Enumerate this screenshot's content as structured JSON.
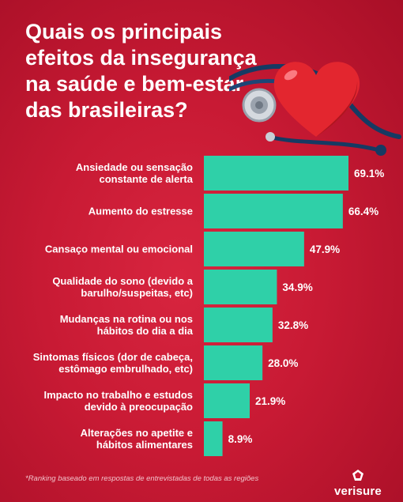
{
  "title_lines": [
    "Quais os principais",
    "efeitos da insegurança",
    "na saúde e bem-estar",
    "das brasileiras?"
  ],
  "footnote": "*Ranking baseado em respostas de entrevistadas de todas as regiões",
  "brand": "verisure",
  "colors": {
    "background": "#c81a34",
    "bar": "#2fd0a8",
    "text": "#ffffff"
  },
  "icons": [
    "heart-icon",
    "stethoscope-icon",
    "verisure-logo-icon"
  ],
  "chart_data": {
    "type": "bar",
    "orientation": "horizontal",
    "title": "Quais os principais efeitos da insegurança na saúde e bem-estar das brasileiras?",
    "unit": "%",
    "categories": [
      [
        "Ansiedade ou sensação",
        "constante de alerta"
      ],
      [
        "Aumento do estresse"
      ],
      [
        "Cansaço mental ou emocional"
      ],
      [
        "Qualidade do sono (devido a",
        "barulho/suspeitas, etc)"
      ],
      [
        "Mudanças na rotina ou nos",
        "hábitos do dia a dia"
      ],
      [
        "Sintomas físicos (dor de cabeça,",
        "estômago embrulhado, etc)"
      ],
      [
        "Impacto no trabalho e estudos",
        "devido à preocupação"
      ],
      [
        "Alterações no apetite e",
        "hábitos alimentares"
      ]
    ],
    "values": [
      69.1,
      66.4,
      47.9,
      34.9,
      32.8,
      28.0,
      21.9,
      8.9
    ],
    "value_labels": [
      "69.1%",
      "66.4%",
      "47.9%",
      "34.9%",
      "32.8%",
      "28.0%",
      "21.9%",
      "8.9%"
    ],
    "xlim": [
      0,
      69.1
    ],
    "grid": false,
    "legend": "none"
  }
}
